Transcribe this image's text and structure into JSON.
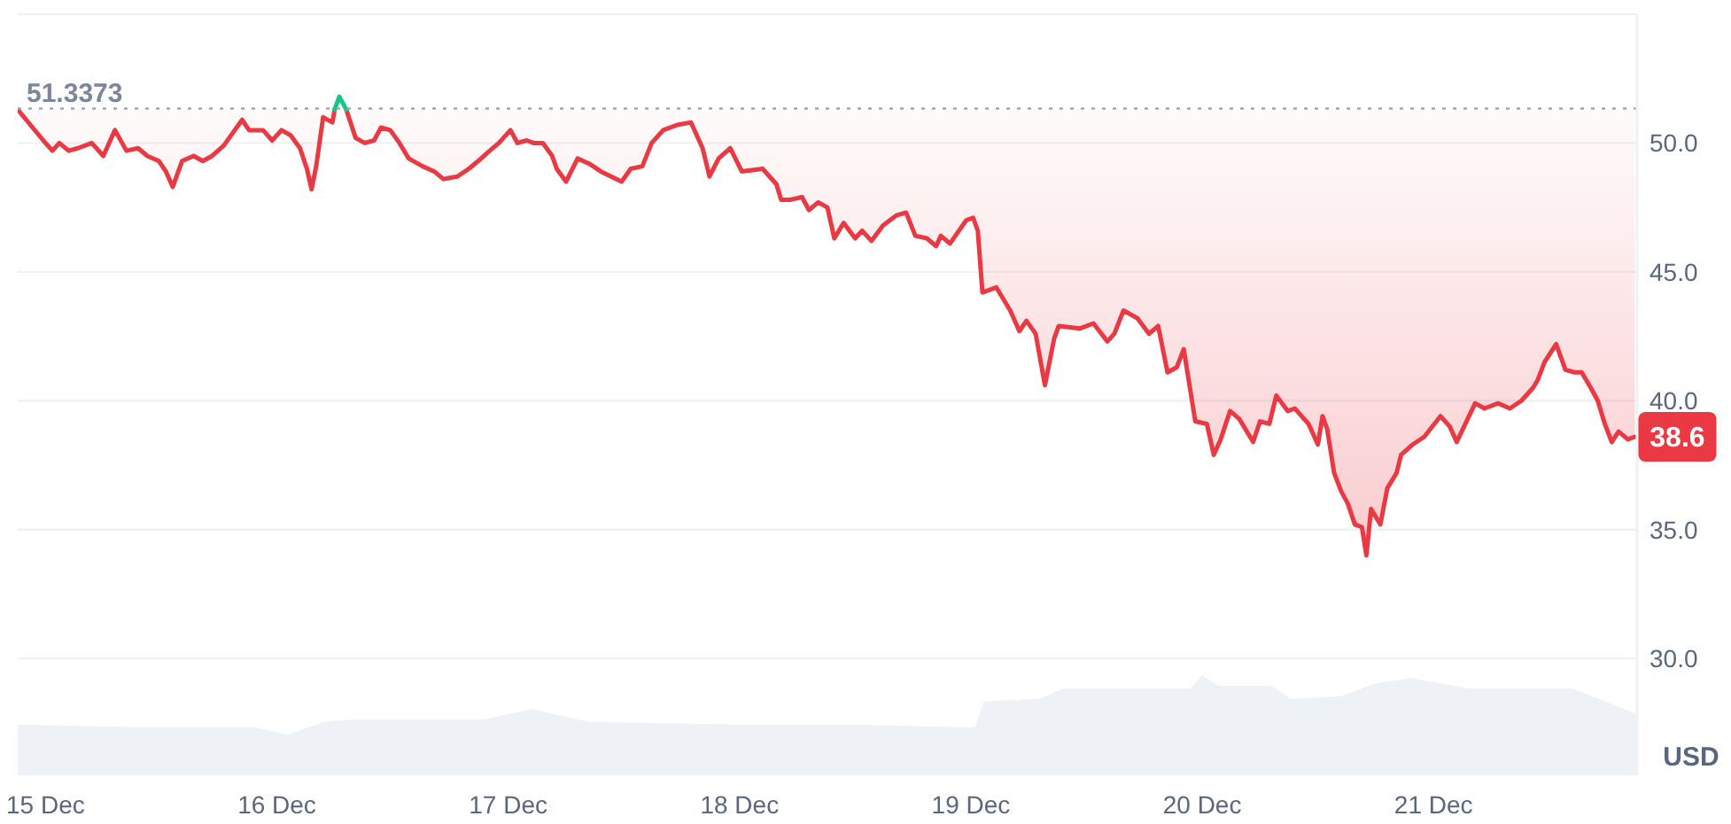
{
  "chart_data": {
    "type": "line",
    "x": [
      "--12-14T21:07",
      "--12-14T23:46",
      "--12-15T00:43",
      "--12-15T01:26",
      "--12-15T02:24",
      "--12-15T03:22",
      "--12-15T04:48",
      "--12-15T06:00",
      "--12-15T07:12",
      "--12-15T08:24",
      "--12-15T09:36",
      "--12-15T10:34",
      "--12-15T11:46",
      "--12-15T12:29",
      "--12-15T13:12",
      "--12-15T14:10",
      "--12-15T15:22",
      "--12-15T16:19",
      "--12-15T17:17",
      "--12-15T18:29",
      "--12-15T20:24",
      "--12-15T21:07",
      "--12-15T22:34",
      "--12-15T23:31",
      "--12-16T00:29",
      "--12-16T01:26",
      "--12-16T02:24",
      "--12-16T03:07",
      "--12-16T03:36",
      "--12-16T04:05",
      "--12-16T04:48",
      "--12-16T05:46",
      "--12-16T06:00",
      "--12-16T06:29",
      "--12-16T07:12",
      "--12-16T08:10",
      "--12-16T09:07",
      "--12-16T10:05",
      "--12-16T10:48",
      "--12-16T11:46",
      "--12-16T12:43",
      "--12-16T13:41",
      "--12-16T15:07",
      "--12-16T16:19",
      "--12-16T17:17",
      "--12-16T18:43",
      "--12-16T19:55",
      "--12-16T20:53",
      "--12-16T22:05",
      "--12-16T23:02",
      "--12-17T00:14",
      "--12-17T00:58",
      "--12-17T01:55",
      "--12-17T02:38",
      "--12-17T03:36",
      "--12-17T04:34",
      "--12-17T05:02",
      "--12-17T06:00",
      "--12-17T07:12",
      "--12-17T08:24",
      "--12-17T09:36",
      "--12-17T11:46",
      "--12-17T12:43",
      "--12-17T13:55",
      "--12-17T14:53",
      "--12-17T16:05",
      "--12-17T17:31",
      "--12-17T18:58",
      "--12-17T20:10",
      "--12-17T20:53",
      "--12-17T21:50",
      "--12-17T23:02",
      "--12-18T00:14",
      "--12-18T02:24",
      "--12-18T03:50",
      "--12-18T04:19",
      "--12-18T05:17",
      "--12-18T06:29",
      "--12-18T07:12",
      "--12-18T08:10",
      "--12-18T09:07",
      "--12-18T09:50",
      "--12-18T10:48",
      "--12-18T12:00",
      "--12-18T12:43",
      "--12-18T13:41",
      "--12-18T14:53",
      "--12-18T16:19",
      "--12-18T17:17",
      "--12-18T18:14",
      "--12-18T19:26",
      "--12-18T20:24",
      "--12-18T20:53",
      "--12-18T21:50",
      "--12-18T23:31",
      "--12-19T00:14",
      "--12-19T00:43",
      "--12-19T01:12",
      "--12-19T02:38",
      "--12-19T04:05",
      "--12-19T05:02",
      "--12-19T05:46",
      "--12-19T06:43",
      "--12-19T07:41",
      "--12-19T08:38",
      "--12-19T09:07",
      "--12-19T11:17",
      "--12-19T12:43",
      "--12-19T14:10",
      "--12-19T14:53",
      "--12-19T15:50",
      "--12-19T17:17",
      "--12-19T18:29",
      "--12-19T19:26",
      "--12-19T20:24",
      "--12-19T21:22",
      "--12-19T22:05",
      "--12-19T23:17",
      "--12-20T00:29",
      "--12-20T01:12",
      "--12-20T01:55",
      "--12-20T02:53",
      "--12-20T03:50",
      "--12-20T05:17",
      "--12-20T06:00",
      "--12-20T06:58",
      "--12-20T07:41",
      "--12-20T08:53",
      "--12-20T09:36",
      "--12-20T11:02",
      "--12-20T12:00",
      "--12-20T12:29",
      "--12-20T12:58",
      "--12-20T13:41",
      "--12-20T14:24",
      "--12-20T15:07",
      "--12-20T15:50",
      "--12-20T16:34",
      "--12-20T17:02",
      "--12-20T17:31",
      "--12-20T18:29",
      "--12-20T19:12",
      "--12-20T20:10",
      "--12-20T20:38",
      "--12-20T21:50",
      "--12-20T23:02",
      "--12-21T00:43",
      "--12-21T01:41",
      "--12-21T02:24",
      "--12-21T04:19",
      "--12-21T05:17",
      "--12-21T06:43",
      "--12-21T07:55",
      "--12-21T09:07",
      "--12-21T10:19",
      "--12-21T10:48",
      "--12-21T11:31",
      "--12-21T12:43",
      "--12-21T13:41",
      "--12-21T14:38",
      "--12-21T15:22",
      "--12-21T16:19",
      "--12-21T17:02",
      "--12-21T17:46",
      "--12-21T18:29",
      "--12-21T19:12",
      "--12-21T20:10",
      "--12-21T20:53"
    ],
    "xlim": [
      "--12-14T21:07",
      "--12-21T21:07"
    ],
    "xticks": [
      {
        "value": "--12-15",
        "label": "15 Dec"
      },
      {
        "value": "--12-16",
        "label": "16 Dec"
      },
      {
        "value": "--12-17",
        "label": "17 Dec"
      },
      {
        "value": "--12-18",
        "label": "18 Dec"
      },
      {
        "value": "--12-19",
        "label": "19 Dec"
      },
      {
        "value": "--12-20",
        "label": "20 Dec"
      },
      {
        "value": "--12-21",
        "label": "21 Dec"
      }
    ],
    "ylim": [
      25.5,
      55
    ],
    "yticks": [
      {
        "value": 30,
        "label": "30.0"
      },
      {
        "value": 35,
        "label": "35.0"
      },
      {
        "value": 40,
        "label": "40.0"
      },
      {
        "value": 45,
        "label": "45.0"
      },
      {
        "value": 50,
        "label": "50.0"
      }
    ],
    "ylabel": "USD",
    "grid": "y",
    "series": [
      {
        "type": "area",
        "color": "#eef1f5",
        "x": [
          "--12-14T21:07",
          "--12-15T09:36",
          "--12-15T21:36",
          "--12-16T01:12",
          "--12-16T04:48",
          "--12-16T08:24",
          "--12-16T21:36",
          "--12-17T02:24",
          "--12-17T08:24",
          "--12-18T00:00",
          "--12-18T12:00",
          "--12-18T22:48",
          "--12-19T00:29",
          "--12-19T01:26",
          "--12-19T07:12",
          "--12-19T09:36",
          "--12-19T22:48",
          "--12-20T00:00",
          "--12-20T01:41",
          "--12-20T07:12",
          "--12-20T09:07",
          "--12-20T14:24",
          "--12-20T18:00",
          "--12-20T21:36",
          "--12-21T03:36",
          "--12-21T14:24",
          "--12-21T21:07"
        ],
        "values": [
          27.4,
          27.3,
          27.3,
          27.0,
          27.5,
          27.6,
          27.6,
          28.0,
          27.5,
          27.4,
          27.4,
          27.3,
          27.3,
          28.3,
          28.4,
          28.8,
          28.8,
          29.3,
          28.9,
          28.9,
          28.4,
          28.5,
          29.0,
          29.2,
          28.8,
          28.8,
          27.8
        ]
      },
      {
        "color": "#ea3943",
        "values": [
          51.3,
          50.1,
          49.7,
          50.0,
          49.7,
          49.8,
          50.0,
          49.5,
          50.5,
          49.7,
          49.8,
          49.5,
          49.3,
          48.9,
          48.3,
          49.3,
          49.5,
          49.3,
          49.5,
          49.9,
          50.9,
          50.5,
          50.5,
          50.1,
          50.5,
          50.3,
          49.8,
          49.0,
          48.2,
          49.1,
          51.0,
          50.8,
          51.3,
          null,
          51.3,
          50.2,
          50.0,
          50.1,
          50.6,
          50.5,
          50.0,
          49.4,
          49.1,
          48.9,
          48.6,
          48.7,
          49.0,
          49.3,
          49.7,
          50.0,
          50.5,
          50.0,
          50.1,
          50.0,
          50.0,
          49.5,
          49.0,
          48.5,
          49.4,
          49.2,
          48.9,
          48.5,
          49.0,
          49.1,
          50.0,
          50.5,
          50.7,
          50.8,
          49.8,
          48.7,
          49.4,
          49.8,
          48.9,
          49.0,
          48.4,
          47.8,
          47.8,
          47.9,
          47.4,
          47.7,
          47.5,
          46.3,
          46.9,
          46.3,
          46.6,
          46.2,
          46.8,
          47.2,
          47.3,
          46.4,
          46.3,
          46.0,
          46.4,
          46.1,
          47.0,
          47.1,
          46.6,
          44.2,
          44.4,
          43.5,
          42.7,
          43.1,
          42.6,
          40.6,
          42.4,
          42.9,
          42.8,
          43.0,
          42.3,
          42.6,
          43.5,
          43.2,
          42.6,
          42.9,
          41.1,
          41.3,
          42.0,
          39.2,
          39.1,
          37.9,
          38.5,
          39.6,
          39.3,
          38.4,
          39.2,
          39.1,
          40.2,
          39.6,
          39.7,
          39.1,
          38.3,
          39.4,
          38.9,
          37.2,
          36.5,
          36.0,
          35.2,
          35.1,
          34.0,
          35.8,
          35.2,
          36.6,
          37.2,
          37.9,
          38.3,
          38.6,
          39.4,
          39.0,
          38.4,
          39.9,
          39.7,
          39.9,
          39.7,
          40.0,
          40.5,
          40.8,
          41.5,
          42.2,
          41.2,
          41.1,
          41.1,
          40.5,
          40.0,
          39.1,
          38.4,
          38.8,
          38.5,
          38.6
        ],
        "lower": [
          51.3,
          50.1,
          49.7,
          50.0,
          49.7,
          49.8,
          50.0,
          49.5,
          50.5,
          49.7,
          49.8,
          49.5,
          49.3,
          48.9,
          48.3,
          49.3,
          49.5,
          49.3,
          49.5,
          49.9,
          50.9,
          50.5,
          50.5,
          50.1,
          50.5,
          50.3,
          49.8,
          49.0,
          48.2,
          49.1,
          51.0,
          50.8,
          51.3,
          null,
          51.3,
          50.2,
          50.0,
          50.1,
          50.6,
          50.5,
          50.0,
          49.4,
          49.1,
          48.9,
          48.6,
          48.7,
          49.0,
          49.3,
          49.7,
          50.0,
          50.5,
          50.0,
          50.1,
          50.0,
          50.0,
          49.5,
          49.0,
          48.5,
          49.4,
          49.2,
          48.9,
          48.5,
          49.0,
          49.1,
          50.0,
          50.5,
          50.7,
          50.8,
          49.8,
          48.7,
          49.4,
          49.8,
          48.9,
          49.0,
          48.4,
          47.8,
          47.8,
          47.9,
          47.4,
          47.7,
          47.5,
          46.3,
          46.9,
          46.3,
          46.6,
          46.2,
          46.8,
          47.2,
          47.3,
          46.4,
          46.3,
          46.0,
          46.4,
          46.1,
          47.0,
          47.1,
          46.6,
          44.2,
          44.4,
          43.5,
          42.7,
          43.1,
          42.6,
          40.6,
          42.4,
          42.9,
          42.8,
          43.0,
          42.3,
          42.6,
          43.5,
          43.2,
          42.6,
          42.9,
          41.1,
          41.3,
          42.0,
          39.2,
          39.1,
          37.9,
          38.5,
          39.6,
          39.3,
          38.4,
          39.2,
          39.1,
          40.2,
          39.6,
          39.7,
          39.1,
          38.3,
          39.4,
          38.9,
          37.2,
          36.5,
          36.0,
          35.2,
          35.1,
          34.0,
          35.8,
          35.2,
          36.6,
          37.2,
          37.9,
          38.3,
          38.6,
          39.4,
          39.0,
          38.4,
          39.9,
          39.7,
          39.9,
          39.7,
          40.0,
          40.5,
          40.8,
          41.5,
          42.2,
          41.2,
          41.1,
          41.1,
          40.5,
          40.0,
          39.1,
          38.4,
          38.8,
          38.5,
          38.6
        ],
        "upper": [
          51.3373,
          51.3373,
          51.3373,
          51.3373,
          51.3373,
          51.3373,
          51.3373,
          51.3373,
          51.3373,
          51.3373,
          51.3373,
          51.3373,
          51.3373,
          51.3373,
          51.3373,
          51.3373,
          51.3373,
          51.3373,
          51.3373,
          51.3373,
          51.3373,
          51.3373,
          51.3373,
          51.3373,
          51.3373,
          51.3373,
          51.3373,
          51.3373,
          51.3373,
          51.3373,
          51.3373,
          51.3373,
          51.3373,
          null,
          51.3373,
          51.3373,
          51.3373,
          51.3373,
          51.3373,
          51.3373,
          51.3373,
          51.3373,
          51.3373,
          51.3373,
          51.3373,
          51.3373,
          51.3373,
          51.3373,
          51.3373,
          51.3373,
          51.3373,
          51.3373,
          51.3373,
          51.3373,
          51.3373,
          51.3373,
          51.3373,
          51.3373,
          51.3373,
          51.3373,
          51.3373,
          51.3373,
          51.3373,
          51.3373,
          51.3373,
          51.3373,
          51.3373,
          51.3373,
          51.3373,
          51.3373,
          51.3373,
          51.3373,
          51.3373,
          51.3373,
          51.3373,
          51.3373,
          51.3373,
          51.3373,
          51.3373,
          51.3373,
          51.3373,
          51.3373,
          51.3373,
          51.3373,
          51.3373,
          51.3373,
          51.3373,
          51.3373,
          51.3373,
          51.3373,
          51.3373,
          51.3373,
          51.3373,
          51.3373,
          51.3373,
          51.3373,
          51.3373,
          51.3373,
          51.3373,
          51.3373,
          51.3373,
          51.3373,
          51.3373,
          51.3373,
          51.3373,
          51.3373,
          51.3373,
          51.3373,
          51.3373,
          51.3373,
          51.3373,
          51.3373,
          51.3373,
          51.3373,
          51.3373,
          51.3373,
          51.3373,
          51.3373,
          51.3373,
          51.3373,
          51.3373,
          51.3373,
          51.3373,
          51.3373,
          51.3373,
          51.3373,
          51.3373,
          51.3373,
          51.3373,
          51.3373,
          51.3373,
          51.3373,
          51.3373,
          51.3373,
          51.3373,
          51.3373,
          51.3373,
          51.3373,
          51.3373,
          51.3373,
          51.3373,
          51.3373,
          51.3373,
          51.3373,
          51.3373,
          51.3373,
          51.3373,
          51.3373,
          51.3373,
          51.3373,
          51.3373,
          51.3373,
          51.3373,
          51.3373,
          51.3373,
          51.3373,
          51.3373,
          51.3373,
          51.3373,
          51.3373,
          51.3373,
          51.3373,
          51.3373,
          51.3373,
          51.3373,
          51.3373,
          51.3373,
          51.3373
        ],
        "value_labels": [
          null,
          null,
          null,
          null,
          null,
          null,
          null,
          null,
          null,
          null,
          null,
          null,
          null,
          null,
          null,
          null,
          null,
          null,
          null,
          null,
          null,
          null,
          null,
          null,
          null,
          null,
          null,
          null,
          null,
          null,
          null,
          null,
          null,
          null,
          null,
          null,
          null,
          null,
          null,
          null,
          null,
          null,
          null,
          null,
          null,
          null,
          null,
          null,
          null,
          null,
          null,
          null,
          null,
          null,
          null,
          null,
          null,
          null,
          null,
          null,
          null,
          null,
          null,
          null,
          null,
          null,
          null,
          null,
          null,
          null,
          null,
          null,
          null,
          null,
          null,
          null,
          null,
          null,
          null,
          null,
          null,
          null,
          null,
          null,
          null,
          null,
          null,
          null,
          null,
          null,
          null,
          null,
          null,
          null,
          null,
          null,
          null,
          null,
          null,
          null,
          null,
          null,
          null,
          null,
          null,
          null,
          null,
          null,
          null,
          null,
          null,
          null,
          null,
          null,
          null,
          null,
          null,
          null,
          null,
          null,
          null,
          null,
          null,
          null,
          null,
          null,
          null,
          null,
          null,
          null,
          null,
          null,
          null,
          null,
          null,
          null,
          null,
          null,
          null,
          null,
          null,
          null,
          null,
          null,
          null,
          null,
          null,
          null,
          null,
          null,
          null,
          null,
          null,
          null,
          null,
          null,
          null,
          null,
          null,
          null,
          null,
          null,
          null,
          null,
          null,
          null,
          null,
          "38.6"
        ]
      },
      {
        "color": "#16c784",
        "x": [
          "--12-16T06:00",
          "--12-16T06:29",
          "--12-16T07:12"
        ],
        "values": [
          51.3,
          51.8,
          51.3
        ]
      }
    ],
    "ref_lines": [
      {
        "axis": "y",
        "value": 51.3373,
        "label": "51.3373",
        "line_style": "dotted",
        "color": "#a1a7bb"
      }
    ]
  }
}
